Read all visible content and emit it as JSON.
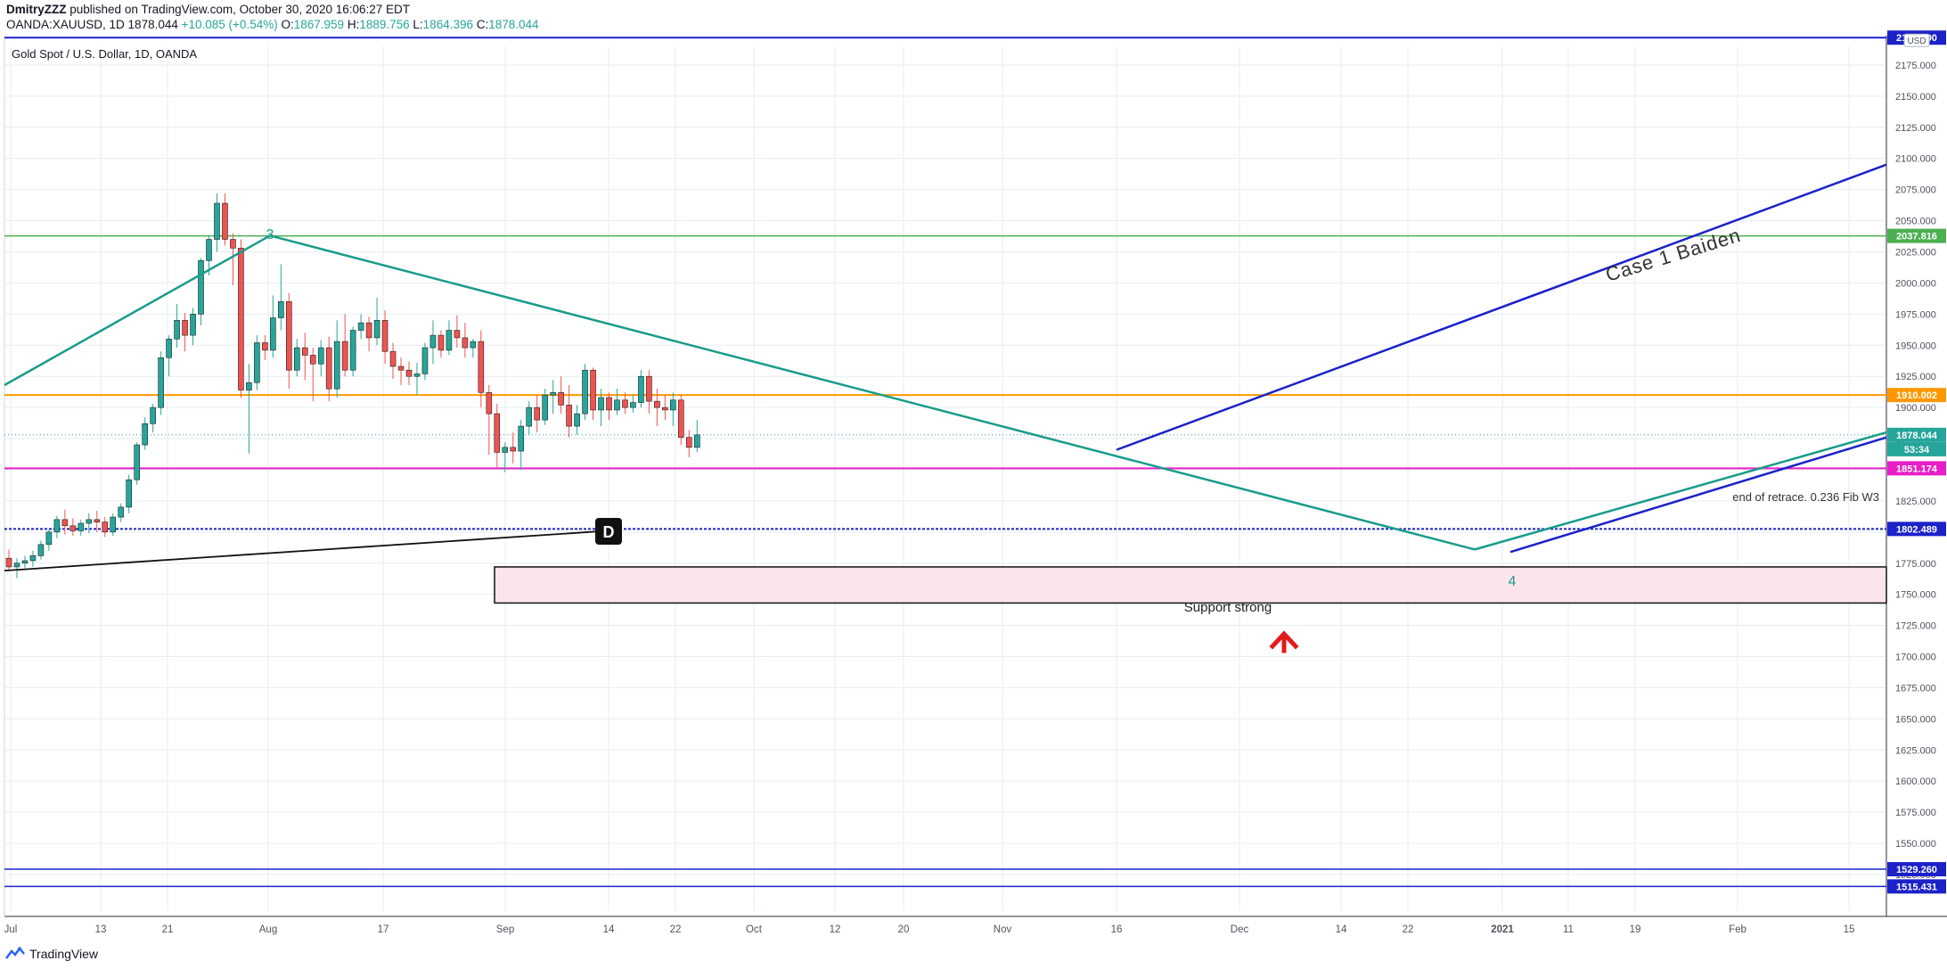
{
  "header": {
    "author": "DmitryZZZ",
    "published": "published on TradingView.com, October 30, 2020 16:06:27 EDT",
    "symbol": "OANDA:XAUUSD, 1D",
    "last": "1878.044",
    "change": "+10.085 (+0.54%)",
    "o_label": "O:",
    "o": "1867.959",
    "h_label": "H:",
    "h": "1889.756",
    "l_label": "L:",
    "l": "1864.396",
    "c_label": "C:",
    "c": "1878.044"
  },
  "chart_title": "Gold Spot / U.S. Dollar, 1D, OANDA",
  "currency_badge": "USD",
  "footer": {
    "brand": "TradingView"
  },
  "colors": {
    "up": "#26a69a",
    "down": "#ef5350",
    "teal_line": "#1a9c8a",
    "blue_line": "#1b22c8",
    "green_level": "#4caf50",
    "orange_level": "#ff9800",
    "magenta_level": "#e91ec8",
    "support_fill": "#fbe4ea",
    "arrow": "#e21b1b",
    "grid": "#e6eef3",
    "axis_text": "#50535e"
  },
  "chart_data": {
    "type": "candlestick",
    "title": "Gold Spot / U.S. Dollar, 1D, OANDA",
    "ylim": [
      1510,
      2200
    ],
    "y_ticks": [
      "2175.000",
      "2150.000",
      "2125.000",
      "2100.000",
      "2075.000",
      "2050.000",
      "2025.000",
      "2000.000",
      "1975.000",
      "1950.000",
      "1925.000",
      "1900.000",
      "1875.000",
      "1850.000",
      "1825.000",
      "1800.000",
      "1775.000",
      "1750.000",
      "1725.000",
      "1700.000",
      "1675.000",
      "1650.000",
      "1625.000",
      "1600.000",
      "1575.000",
      "1550.000",
      "1525.000"
    ],
    "x_ticks": [
      "Jul",
      "13",
      "21",
      "Aug",
      "17",
      "Sep",
      "14",
      "22",
      "Oct",
      "12",
      "20",
      "Nov",
      "16",
      "Dec",
      "14",
      "22",
      "2021",
      "11",
      "19",
      "Feb",
      "15"
    ],
    "price_labels": [
      {
        "text": "2197.000",
        "color": "#1b22c8"
      },
      {
        "text": "2037.816",
        "color": "#4caf50"
      },
      {
        "text": "1910.002",
        "color": "#ff9800"
      },
      {
        "text": "1878.044",
        "color": "#26a69a"
      },
      {
        "text": "53:34",
        "color": "#26a69a"
      },
      {
        "text": "1851.174",
        "color": "#e91ec8"
      },
      {
        "text": "1802.489",
        "color": "#1b22c8"
      },
      {
        "text": "1529.260",
        "color": "#1b22c8"
      },
      {
        "text": "1515.431",
        "color": "#1b22c8"
      }
    ],
    "horizontal_levels": [
      2197,
      2037.816,
      1910.002,
      1851.174,
      1802.489,
      1529.26,
      1515.431
    ],
    "annotations": {
      "wave3": "3",
      "wave4": "4",
      "d_marker": "D",
      "case_text": "Case 1 Baiden",
      "fib_text": "end of retrace. 0.236 Fib W3",
      "support_text": "Support strong"
    },
    "candles": [
      [
        1779,
        1786,
        1769,
        1772
      ],
      [
        1772,
        1779,
        1763,
        1775
      ],
      [
        1775,
        1781,
        1771,
        1777
      ],
      [
        1777,
        1785,
        1772,
        1781
      ],
      [
        1781,
        1793,
        1778,
        1790
      ],
      [
        1790,
        1802,
        1785,
        1800
      ],
      [
        1800,
        1813,
        1795,
        1810
      ],
      [
        1810,
        1818,
        1798,
        1805
      ],
      [
        1805,
        1811,
        1797,
        1801
      ],
      [
        1801,
        1810,
        1797,
        1807
      ],
      [
        1807,
        1815,
        1799,
        1810
      ],
      [
        1810,
        1817,
        1800,
        1808
      ],
      [
        1808,
        1812,
        1796,
        1800
      ],
      [
        1800,
        1815,
        1797,
        1812
      ],
      [
        1812,
        1823,
        1808,
        1820
      ],
      [
        1820,
        1846,
        1815,
        1842
      ],
      [
        1842,
        1872,
        1838,
        1870
      ],
      [
        1870,
        1892,
        1866,
        1887
      ],
      [
        1887,
        1903,
        1880,
        1900
      ],
      [
        1900,
        1945,
        1894,
        1940
      ],
      [
        1940,
        1958,
        1925,
        1955
      ],
      [
        1955,
        1983,
        1948,
        1970
      ],
      [
        1970,
        1976,
        1945,
        1958
      ],
      [
        1958,
        1980,
        1950,
        1975
      ],
      [
        1975,
        2020,
        1966,
        2018
      ],
      [
        2018,
        2038,
        2006,
        2035
      ],
      [
        2035,
        2072,
        2025,
        2064
      ],
      [
        2064,
        2072,
        2030,
        2035
      ],
      [
        2035,
        2040,
        1998,
        2028
      ],
      [
        2028,
        2035,
        1908,
        1914
      ],
      [
        1914,
        1935,
        1863,
        1920
      ],
      [
        1920,
        1958,
        1914,
        1952
      ],
      [
        1952,
        1958,
        1938,
        1946
      ],
      [
        1946,
        1990,
        1940,
        1972
      ],
      [
        1972,
        2015,
        1962,
        1985
      ],
      [
        1985,
        1992,
        1915,
        1930
      ],
      [
        1930,
        1955,
        1925,
        1948
      ],
      [
        1948,
        1960,
        1922,
        1942
      ],
      [
        1942,
        1948,
        1905,
        1935
      ],
      [
        1935,
        1954,
        1925,
        1948
      ],
      [
        1948,
        1957,
        1905,
        1915
      ],
      [
        1915,
        1970,
        1908,
        1953
      ],
      [
        1953,
        1975,
        1925,
        1930
      ],
      [
        1930,
        1965,
        1925,
        1962
      ],
      [
        1962,
        1975,
        1955,
        1968
      ],
      [
        1968,
        1973,
        1945,
        1956
      ],
      [
        1956,
        1988,
        1950,
        1970
      ],
      [
        1970,
        1978,
        1935,
        1945
      ],
      [
        1945,
        1952,
        1923,
        1933
      ],
      [
        1933,
        1940,
        1918,
        1930
      ],
      [
        1930,
        1937,
        1918,
        1925
      ],
      [
        1925,
        1936,
        1910,
        1927
      ],
      [
        1927,
        1952,
        1922,
        1948
      ],
      [
        1948,
        1970,
        1935,
        1958
      ],
      [
        1958,
        1962,
        1940,
        1946
      ],
      [
        1946,
        1970,
        1942,
        1962
      ],
      [
        1962,
        1974,
        1948,
        1956
      ],
      [
        1956,
        1968,
        1940,
        1948
      ],
      [
        1948,
        1955,
        1940,
        1953
      ],
      [
        1953,
        1962,
        1900,
        1912
      ],
      [
        1912,
        1918,
        1862,
        1895
      ],
      [
        1895,
        1903,
        1852,
        1864
      ],
      [
        1864,
        1872,
        1848,
        1868
      ],
      [
        1868,
        1880,
        1855,
        1865
      ],
      [
        1865,
        1890,
        1850,
        1885
      ],
      [
        1885,
        1905,
        1878,
        1900
      ],
      [
        1900,
        1910,
        1880,
        1890
      ],
      [
        1890,
        1915,
        1886,
        1910
      ],
      [
        1910,
        1922,
        1895,
        1912
      ],
      [
        1912,
        1925,
        1895,
        1902
      ],
      [
        1902,
        1918,
        1876,
        1885
      ],
      [
        1885,
        1902,
        1878,
        1895
      ],
      [
        1895,
        1935,
        1890,
        1930
      ],
      [
        1930,
        1932,
        1890,
        1898
      ],
      [
        1898,
        1915,
        1885,
        1908
      ],
      [
        1908,
        1912,
        1890,
        1898
      ],
      [
        1898,
        1915,
        1894,
        1906
      ],
      [
        1906,
        1912,
        1895,
        1900
      ],
      [
        1900,
        1910,
        1896,
        1904
      ],
      [
        1904,
        1930,
        1900,
        1925
      ],
      [
        1925,
        1930,
        1895,
        1905
      ],
      [
        1905,
        1915,
        1885,
        1900
      ],
      [
        1900,
        1910,
        1890,
        1898
      ],
      [
        1898,
        1912,
        1885,
        1906
      ],
      [
        1906,
        1910,
        1870,
        1876
      ],
      [
        1876,
        1882,
        1860,
        1868
      ],
      [
        1868,
        1890,
        1864,
        1878
      ]
    ]
  }
}
